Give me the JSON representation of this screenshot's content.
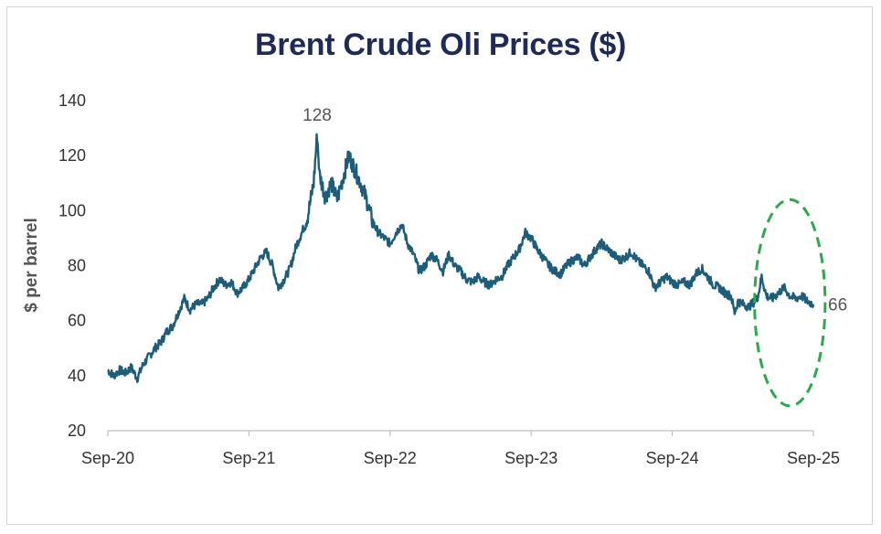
{
  "chart_data": {
    "type": "line",
    "title": "Brent Crude Oli Prices ($)",
    "ylabel": "$ per barrel",
    "xlabel": "",
    "ylim": [
      20,
      140
    ],
    "yticks": [
      20,
      40,
      60,
      80,
      100,
      120,
      140
    ],
    "xticks": [
      "Sep-20",
      "Sep-21",
      "Sep-22",
      "Sep-23",
      "Sep-24",
      "Sep-25"
    ],
    "xlim_months": [
      0,
      60
    ],
    "grid": false,
    "series": [
      {
        "name": "Brent crude",
        "color": "#1b5e7b",
        "points": [
          [
            0,
            42
          ],
          [
            0.5,
            40
          ],
          [
            1,
            42
          ],
          [
            1.5,
            41
          ],
          [
            2,
            43
          ],
          [
            2.5,
            39
          ],
          [
            3,
            44
          ],
          [
            3.5,
            47
          ],
          [
            4,
            50
          ],
          [
            4.5,
            52
          ],
          [
            5,
            56
          ],
          [
            5.5,
            58
          ],
          [
            6,
            63
          ],
          [
            6.5,
            68
          ],
          [
            7,
            64
          ],
          [
            7.5,
            66
          ],
          [
            8,
            66
          ],
          [
            8.5,
            68
          ],
          [
            9,
            72
          ],
          [
            9.5,
            75
          ],
          [
            10,
            73
          ],
          [
            10.5,
            74
          ],
          [
            11,
            70
          ],
          [
            11.5,
            72
          ],
          [
            12,
            75
          ],
          [
            12.5,
            79
          ],
          [
            13,
            83
          ],
          [
            13.5,
            85
          ],
          [
            14,
            80
          ],
          [
            14.5,
            72
          ],
          [
            15,
            75
          ],
          [
            15.5,
            79
          ],
          [
            16,
            87
          ],
          [
            16.5,
            92
          ],
          [
            17,
            98
          ],
          [
            17.5,
            110
          ],
          [
            17.8,
            128
          ],
          [
            18,
            113
          ],
          [
            18.5,
            105
          ],
          [
            19,
            110
          ],
          [
            19.5,
            104
          ],
          [
            20,
            112
          ],
          [
            20.5,
            120
          ],
          [
            21,
            115
          ],
          [
            21.5,
            110
          ],
          [
            22,
            104
          ],
          [
            22.5,
            96
          ],
          [
            23,
            92
          ],
          [
            23.5,
            90
          ],
          [
            24,
            88
          ],
          [
            24.5,
            92
          ],
          [
            25,
            95
          ],
          [
            25.5,
            88
          ],
          [
            26,
            84
          ],
          [
            26.5,
            78
          ],
          [
            27,
            80
          ],
          [
            27.5,
            84
          ],
          [
            28,
            82
          ],
          [
            28.5,
            78
          ],
          [
            29,
            84
          ],
          [
            29.5,
            80
          ],
          [
            30,
            78
          ],
          [
            30.5,
            75
          ],
          [
            31,
            74
          ],
          [
            31.5,
            76
          ],
          [
            32,
            74
          ],
          [
            32.5,
            73
          ],
          [
            33,
            75
          ],
          [
            33.5,
            76
          ],
          [
            34,
            80
          ],
          [
            34.5,
            83
          ],
          [
            35,
            86
          ],
          [
            35.5,
            92
          ],
          [
            36,
            90
          ],
          [
            36.5,
            86
          ],
          [
            37,
            83
          ],
          [
            37.5,
            80
          ],
          [
            38,
            78
          ],
          [
            38.5,
            77
          ],
          [
            39,
            80
          ],
          [
            39.5,
            82
          ],
          [
            40,
            83
          ],
          [
            40.5,
            80
          ],
          [
            41,
            83
          ],
          [
            41.5,
            86
          ],
          [
            42,
            88
          ],
          [
            42.5,
            86
          ],
          [
            43,
            84
          ],
          [
            43.5,
            82
          ],
          [
            44,
            83
          ],
          [
            44.5,
            85
          ],
          [
            45,
            82
          ],
          [
            45.5,
            80
          ],
          [
            46,
            78
          ],
          [
            46.5,
            72
          ],
          [
            47,
            74
          ],
          [
            47.5,
            76
          ],
          [
            48,
            74
          ],
          [
            48.5,
            73
          ],
          [
            49,
            74
          ],
          [
            49.5,
            73
          ],
          [
            50,
            77
          ],
          [
            50.5,
            79
          ],
          [
            51,
            76
          ],
          [
            51.5,
            73
          ],
          [
            52,
            72
          ],
          [
            52.5,
            70
          ],
          [
            53,
            69
          ],
          [
            53.3,
            63
          ],
          [
            53.6,
            67
          ],
          [
            54,
            66
          ],
          [
            54.5,
            65
          ],
          [
            55,
            67
          ],
          [
            55.3,
            69
          ],
          [
            55.6,
            76
          ],
          [
            56,
            69
          ],
          [
            56.5,
            68
          ],
          [
            57,
            70
          ],
          [
            57.5,
            72
          ],
          [
            58,
            69
          ],
          [
            58.5,
            68
          ],
          [
            59,
            69
          ],
          [
            59.5,
            67
          ],
          [
            60,
            66
          ]
        ]
      }
    ],
    "annotations": [
      {
        "label": "128",
        "x": 17.8,
        "y": 128,
        "position": "above"
      },
      {
        "label": "66",
        "x": 60,
        "y": 66,
        "position": "right"
      }
    ],
    "highlight": {
      "shape": "ellipse",
      "style": "dashed",
      "color": "#2aaa4a",
      "x_range_months": [
        55,
        61
      ],
      "y_range": [
        29,
        104
      ]
    }
  }
}
